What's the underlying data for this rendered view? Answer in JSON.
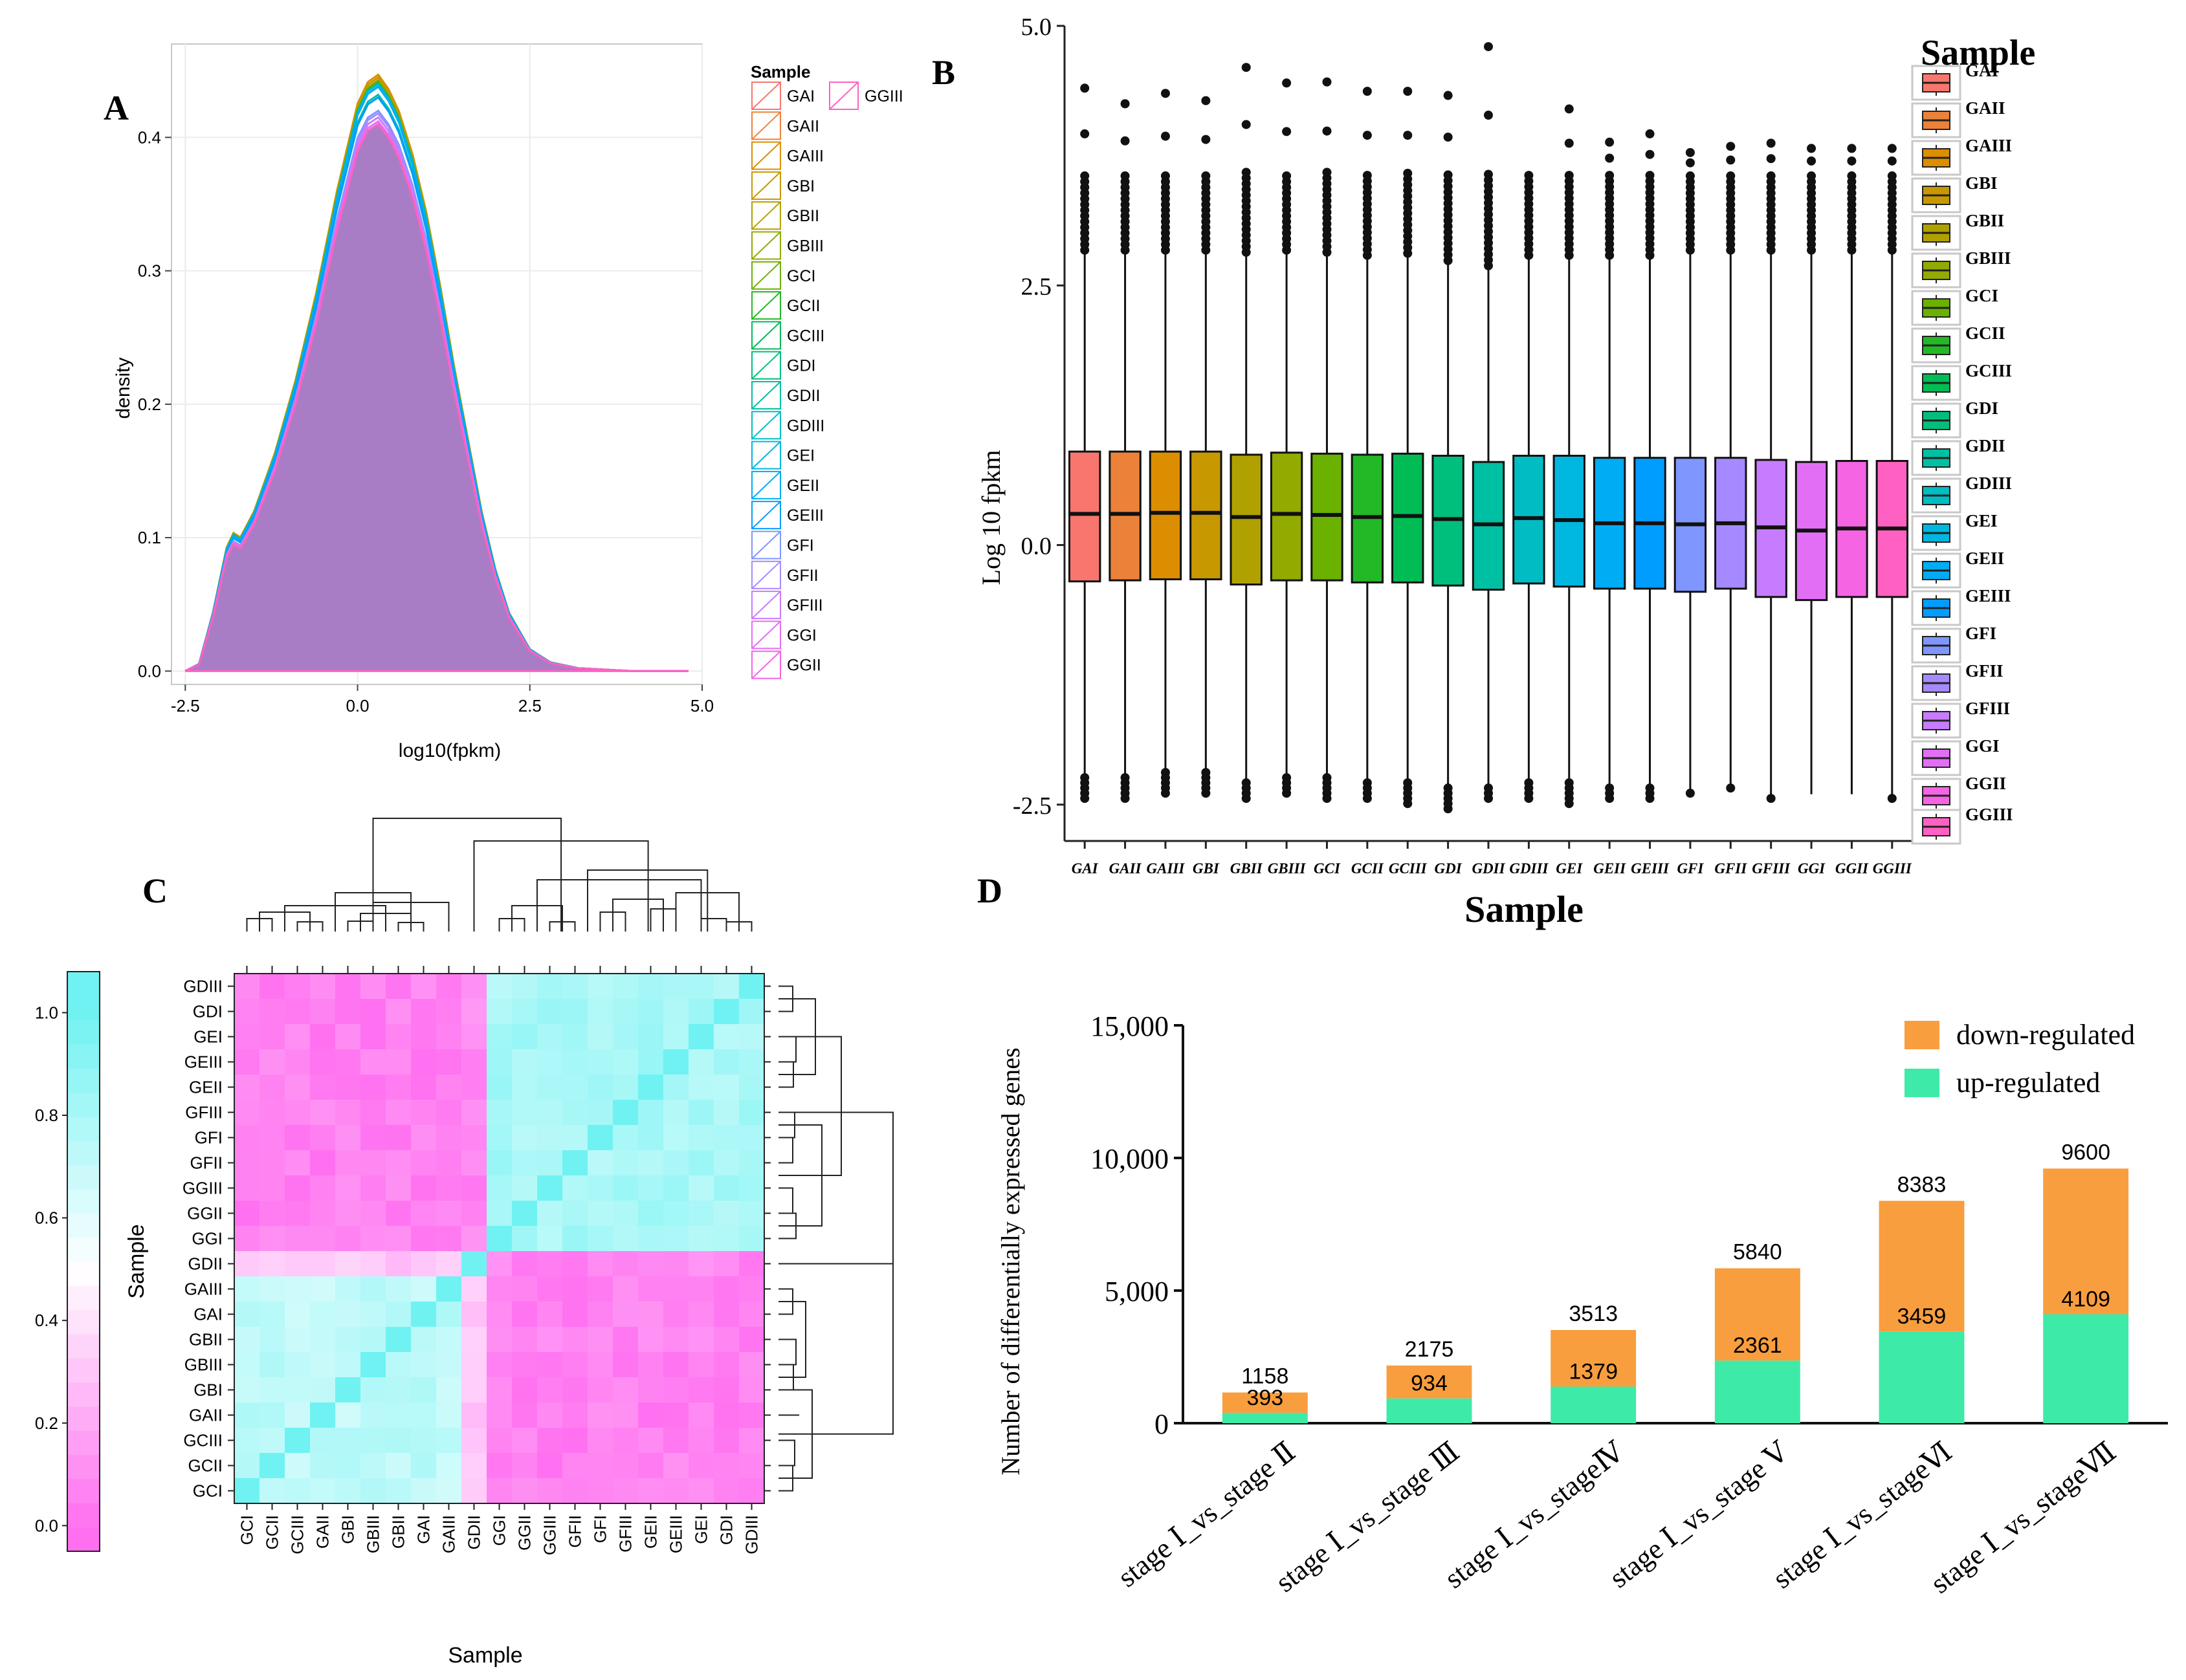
{
  "panel_labels": {
    "a": "A",
    "b": "B",
    "c": "C",
    "d": "D"
  },
  "samples": [
    "GAI",
    "GAII",
    "GAIII",
    "GBI",
    "GBII",
    "GBIII",
    "GCI",
    "GCII",
    "GCIII",
    "GDI",
    "GDII",
    "GDIII",
    "GEI",
    "GEII",
    "GEIII",
    "GFI",
    "GFII",
    "GFIII",
    "GGI",
    "GGII",
    "GGIII"
  ],
  "sample_colors": [
    "#F8766D",
    "#EC8239",
    "#DB8E00",
    "#C79800",
    "#B0A100",
    "#93AA00",
    "#6BB100",
    "#23B826",
    "#00BC55",
    "#00BF7D",
    "#00C0A3",
    "#00BDC4",
    "#00B7E0",
    "#00ADF4",
    "#009DFF",
    "#7F96FF",
    "#A58AFF",
    "#C77CFF",
    "#E36EF6",
    "#F564E3",
    "#FF61C3"
  ],
  "chart_data": [
    {
      "panel": "A",
      "type": "area",
      "title": "",
      "xlabel": "log10(fpkm)",
      "ylabel": "density",
      "xlim": [
        -2.7,
        5.0
      ],
      "ylim": [
        -0.01,
        0.47
      ],
      "xticks": [
        "-2.5",
        "0.0",
        "2.5",
        "5.0"
      ],
      "xtick_values": [
        -2.5,
        0.0,
        2.5,
        5.0
      ],
      "yticks": [
        "0.0",
        "0.1",
        "0.2",
        "0.3",
        "0.4"
      ],
      "ytick_values": [
        0.0,
        0.1,
        0.2,
        0.3,
        0.4
      ],
      "legend_title": "Sample",
      "legend_entries": [
        "GAI",
        "GAII",
        "GAIII",
        "GBI",
        "GBII",
        "GBIII",
        "GCI",
        "GCII",
        "GCIII",
        "GDI",
        "GDII",
        "GDIII",
        "GEI",
        "GEII",
        "GEIII",
        "GFI",
        "GFII",
        "GFIII",
        "GGI",
        "GGII",
        "GGIII"
      ],
      "fill_color": "#A272C0",
      "x": [
        -2.5,
        -2.3,
        -2.1,
        -1.9,
        -1.8,
        -1.7,
        -1.5,
        -1.2,
        -0.9,
        -0.6,
        -0.3,
        0.0,
        0.15,
        0.3,
        0.45,
        0.6,
        0.8,
        1.0,
        1.2,
        1.4,
        1.6,
        1.8,
        2.0,
        2.2,
        2.5,
        2.8,
        3.2,
        3.6,
        4.0,
        4.8
      ],
      "series_peaks": [
        0.44,
        0.445,
        0.447,
        0.445,
        0.443,
        0.442,
        0.442,
        0.441,
        0.44,
        0.438,
        0.432,
        0.43,
        0.44,
        0.438,
        0.43,
        0.42,
        0.418,
        0.415,
        0.412,
        0.41,
        0.41
      ],
      "series": [
        {
          "name": "GGIII",
          "values": [
            0.0,
            0.005,
            0.04,
            0.085,
            0.095,
            0.092,
            0.11,
            0.15,
            0.2,
            0.26,
            0.33,
            0.39,
            0.405,
            0.41,
            0.4,
            0.385,
            0.355,
            0.315,
            0.265,
            0.21,
            0.16,
            0.11,
            0.07,
            0.04,
            0.015,
            0.006,
            0.002,
            0.001,
            0.0,
            0.0
          ]
        }
      ]
    },
    {
      "panel": "B",
      "type": "box",
      "title": "",
      "xlabel": "Sample",
      "ylabel": "Log 10 fpkm",
      "ylim": [
        -2.85,
        5.0
      ],
      "yticks": [
        "-2.5",
        "0.0",
        "2.5",
        "5.0"
      ],
      "ytick_values": [
        -2.5,
        0.0,
        2.5,
        5.0
      ],
      "legend_title": "Sample",
      "categories": [
        "GAI",
        "GAII",
        "GAIII",
        "GBI",
        "GBII",
        "GBIII",
        "GCI",
        "GCII",
        "GCIII",
        "GDI",
        "GDII",
        "GDIII",
        "GEI",
        "GEII",
        "GEIII",
        "GFI",
        "GFII",
        "GFIII",
        "GGI",
        "GGII",
        "GGIII"
      ],
      "q1": [
        -0.35,
        -0.34,
        -0.33,
        -0.33,
        -0.38,
        -0.34,
        -0.34,
        -0.36,
        -0.36,
        -0.39,
        -0.43,
        -0.37,
        -0.4,
        -0.42,
        -0.42,
        -0.45,
        -0.42,
        -0.5,
        -0.53,
        -0.5,
        -0.5
      ],
      "median": [
        0.3,
        0.3,
        0.31,
        0.31,
        0.27,
        0.3,
        0.29,
        0.27,
        0.28,
        0.25,
        0.2,
        0.26,
        0.24,
        0.21,
        0.21,
        0.2,
        0.21,
        0.17,
        0.14,
        0.16,
        0.16
      ],
      "q3": [
        0.9,
        0.9,
        0.9,
        0.9,
        0.87,
        0.89,
        0.88,
        0.87,
        0.88,
        0.86,
        0.8,
        0.86,
        0.86,
        0.84,
        0.84,
        0.84,
        0.84,
        0.82,
        0.8,
        0.81,
        0.81
      ],
      "whisker_low": [
        -2.2,
        -2.2,
        -2.15,
        -2.15,
        -2.25,
        -2.2,
        -2.2,
        -2.25,
        -2.25,
        -2.3,
        -2.3,
        -2.25,
        -2.25,
        -2.3,
        -2.3,
        -2.35,
        -2.3,
        -2.4,
        -2.4,
        -2.4,
        -2.4
      ],
      "whisker_high": [
        2.8,
        2.8,
        2.8,
        2.8,
        2.78,
        2.8,
        2.78,
        2.75,
        2.77,
        2.7,
        2.65,
        2.75,
        2.75,
        2.75,
        2.75,
        2.8,
        2.8,
        2.8,
        2.8,
        2.8,
        2.8
      ],
      "max_outlier": [
        4.4,
        4.25,
        4.35,
        4.28,
        4.6,
        4.45,
        4.46,
        4.37,
        4.37,
        4.33,
        4.8,
        3.68,
        4.2,
        3.88,
        3.96,
        3.78,
        3.84,
        3.87,
        3.82,
        3.82,
        3.82
      ],
      "min_outlier": [
        -2.48,
        -2.45,
        -2.4,
        -2.42,
        -2.48,
        -2.42,
        -2.45,
        -2.45,
        -2.5,
        -2.55,
        -2.45,
        -2.48,
        -2.5,
        -2.45,
        -2.48,
        -2.42,
        -2.38,
        -2.48,
        -2.4,
        -2.4,
        -2.48
      ]
    },
    {
      "panel": "C",
      "type": "heatmap",
      "title": "",
      "xlabel": "Sample",
      "ylabel": "Sample",
      "row_labels": [
        "GDIII",
        "GDI",
        "GEI",
        "GEIII",
        "GEII",
        "GFIII",
        "GFI",
        "GFII",
        "GGIII",
        "GGII",
        "GGI",
        "GDII",
        "GAIII",
        "GAI",
        "GBII",
        "GBIII",
        "GBI",
        "GAII",
        "GCIII",
        "GCII",
        "GCI"
      ],
      "col_labels": [
        "GCI",
        "GCII",
        "GCIII",
        "GAII",
        "GBI",
        "GBIII",
        "GBII",
        "GAI",
        "GAIII",
        "GDII",
        "GGI",
        "GGII",
        "GGIII",
        "GFII",
        "GFI",
        "GFIII",
        "GEII",
        "GEIII",
        "GEI",
        "GDI",
        "GDIII"
      ],
      "colorbar_ticks": [
        "0.0",
        "0.2",
        "0.4",
        "0.6",
        "0.8",
        "1.0"
      ],
      "colorbar_tick_values": [
        0.0,
        0.2,
        0.4,
        0.6,
        0.8,
        1.0
      ],
      "colorbar_range": [
        -0.05,
        1.08
      ],
      "color_low": "#FF70F0",
      "color_mid": "#FFFFFF",
      "color_high": "#70F2F2",
      "value_range": [
        0.0,
        1.0
      ],
      "block_values": {
        "within_group1": 0.72,
        "within_group2": 0.8,
        "between_groups": 0.06,
        "gdii_to_group1": 0.3,
        "gdii_to_group2": 0.08,
        "diagonal": 1.0
      }
    },
    {
      "panel": "D",
      "type": "bar",
      "stacked": true,
      "title": "",
      "xlabel": "",
      "ylabel": "Number of differentially expressed genes",
      "ylim": [
        0,
        15000
      ],
      "yticks": [
        "0",
        "5,000",
        "10,000",
        "15,000"
      ],
      "ytick_values": [
        0,
        5000,
        10000,
        15000
      ],
      "categories": [
        "stage Ⅰ_vs_stage Ⅱ",
        "stage Ⅰ_vs_stage Ⅲ",
        "stage Ⅰ_vs_stageⅣ",
        "stage Ⅰ_vs_stage Ⅴ",
        "stage Ⅰ_vs_stageⅥ",
        "stage Ⅰ_vs_stageⅦ"
      ],
      "series": [
        {
          "name": "up-regulated",
          "color": "#3EEAA7",
          "values": [
            393,
            934,
            1379,
            2361,
            3459,
            4109
          ]
        },
        {
          "name": "down-regulated",
          "color": "#F89E3E",
          "values": [
            765,
            1241,
            2134,
            3479,
            4924,
            5491
          ]
        }
      ],
      "totals": [
        1158,
        2175,
        3513,
        5840,
        8383,
        9600
      ],
      "total_labels": [
        "1158",
        "2175",
        "3513",
        "5840",
        "8383",
        "9600"
      ],
      "up_labels": [
        "393",
        "934",
        "1379",
        "2361",
        "3459",
        "4109"
      ],
      "legend_entries": [
        "down-regulated",
        "up-regulated"
      ],
      "legend_position": "top-right"
    }
  ]
}
